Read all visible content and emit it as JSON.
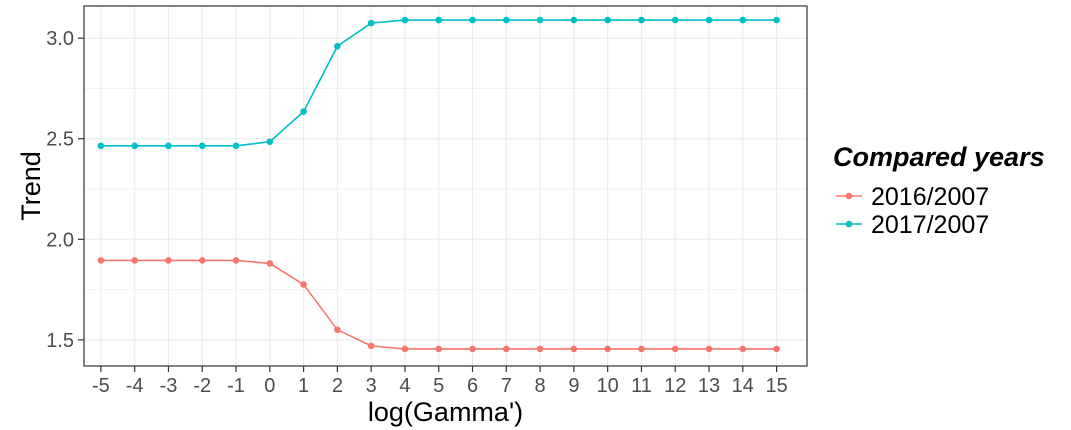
{
  "chart_data": {
    "type": "line",
    "title": "",
    "xlabel": "log(Gamma')",
    "ylabel": "Trend",
    "x": [
      -5,
      -4,
      -3,
      -2,
      -1,
      0,
      1,
      2,
      3,
      4,
      5,
      6,
      7,
      8,
      9,
      10,
      11,
      12,
      13,
      14,
      15
    ],
    "x_tick_labels": [
      "-5",
      "-4",
      "-3",
      "-2",
      "-1",
      "0",
      "1",
      "2",
      "3",
      "4",
      "5",
      "6",
      "7",
      "8",
      "9",
      "10",
      "11",
      "12",
      "13",
      "14",
      "15"
    ],
    "y_ticks": [
      1.5,
      2.0,
      2.5,
      3.0
    ],
    "y_tick_labels": [
      "1.5",
      "2.0",
      "2.5",
      "3.0"
    ],
    "xlim": [
      -5.5,
      15.9
    ],
    "ylim": [
      1.37,
      3.16
    ],
    "grid": true,
    "legend": {
      "title": "Compared years",
      "placement": "right"
    },
    "series": [
      {
        "name": "2016/2007",
        "color": "#F8766D",
        "values": [
          1.895,
          1.895,
          1.895,
          1.895,
          1.895,
          1.88,
          1.775,
          1.55,
          1.47,
          1.455,
          1.455,
          1.455,
          1.455,
          1.455,
          1.455,
          1.455,
          1.455,
          1.455,
          1.455,
          1.455,
          1.455
        ]
      },
      {
        "name": "2017/2007",
        "color": "#00BFC4",
        "values": [
          2.465,
          2.465,
          2.465,
          2.465,
          2.465,
          2.485,
          2.635,
          2.96,
          3.075,
          3.09,
          3.09,
          3.09,
          3.09,
          3.09,
          3.09,
          3.09,
          3.09,
          3.09,
          3.09,
          3.09,
          3.09
        ]
      }
    ]
  }
}
